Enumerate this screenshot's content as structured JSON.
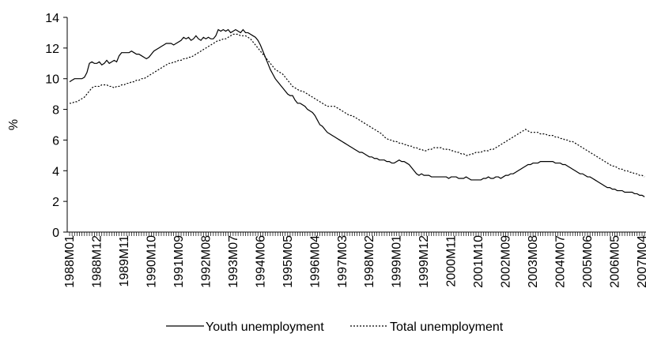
{
  "chart_data": {
    "type": "line",
    "y_label": "%",
    "legend": "bottom",
    "categories": [
      "1988M01",
      null,
      null,
      null,
      null,
      null,
      null,
      null,
      null,
      null,
      null,
      "1988M12",
      null,
      null,
      null,
      null,
      null,
      null,
      null,
      null,
      null,
      null,
      "1989M11",
      null,
      null,
      null,
      null,
      null,
      null,
      null,
      null,
      null,
      null,
      "1990M10",
      null,
      null,
      null,
      null,
      null,
      null,
      null,
      null,
      null,
      null,
      "1991M09",
      null,
      null,
      null,
      null,
      null,
      null,
      null,
      null,
      null,
      null,
      "1992M08",
      null,
      null,
      null,
      null,
      null,
      null,
      null,
      null,
      null,
      null,
      "1993M07",
      null,
      null,
      null,
      null,
      null,
      null,
      null,
      null,
      null,
      null,
      "1994M06",
      null,
      null,
      null,
      null,
      null,
      null,
      null,
      null,
      null,
      null,
      "1995M05",
      null,
      null,
      null,
      null,
      null,
      null,
      null,
      null,
      null,
      null,
      "1996M04",
      null,
      null,
      null,
      null,
      null,
      null,
      null,
      null,
      null,
      null,
      "1997M03",
      null,
      null,
      null,
      null,
      null,
      null,
      null,
      null,
      null,
      null,
      "1998M02",
      null,
      null,
      null,
      null,
      null,
      null,
      null,
      null,
      null,
      null,
      "1999M01",
      null,
      null,
      null,
      null,
      null,
      null,
      null,
      null,
      null,
      null,
      "1999M12",
      null,
      null,
      null,
      null,
      null,
      null,
      null,
      null,
      null,
      null,
      "2000M11",
      null,
      null,
      null,
      null,
      null,
      null,
      null,
      null,
      null,
      null,
      "2001M10",
      null,
      null,
      null,
      null,
      null,
      null,
      null,
      null,
      null,
      null,
      "2002M09",
      null,
      null,
      null,
      null,
      null,
      null,
      null,
      null,
      null,
      null,
      "2003M08",
      null,
      null,
      null,
      null,
      null,
      null,
      null,
      null,
      null,
      null,
      "2004M07",
      null,
      null,
      null,
      null,
      null,
      null,
      null,
      null,
      null,
      null,
      "2005M06",
      null,
      null,
      null,
      null,
      null,
      null,
      null,
      null,
      null,
      null,
      "2006M05",
      null,
      null,
      null,
      null,
      null,
      null,
      null,
      null,
      null,
      null,
      "2007M04",
      null
    ],
    "series": [
      {
        "name": "Youth unemployment",
        "color": "#000000",
        "style": "solid",
        "values": [
          9.8,
          9.9,
          10.0,
          10.0,
          10.0,
          10.0,
          10.1,
          10.4,
          11.0,
          11.1,
          11.0,
          11.0,
          11.1,
          10.9,
          11.0,
          11.2,
          11.0,
          11.1,
          11.2,
          11.1,
          11.5,
          11.7,
          11.7,
          11.7,
          11.7,
          11.8,
          11.7,
          11.6,
          11.6,
          11.5,
          11.4,
          11.3,
          11.4,
          11.6,
          11.8,
          11.9,
          12.0,
          12.1,
          12.2,
          12.3,
          12.3,
          12.3,
          12.2,
          12.3,
          12.4,
          12.5,
          12.7,
          12.6,
          12.7,
          12.5,
          12.6,
          12.8,
          12.6,
          12.5,
          12.7,
          12.6,
          12.7,
          12.6,
          12.6,
          12.8,
          13.2,
          13.1,
          13.2,
          13.1,
          13.2,
          13.0,
          13.1,
          13.2,
          13.1,
          13.0,
          13.2,
          13.0,
          13.0,
          12.9,
          12.8,
          12.7,
          12.5,
          12.2,
          11.8,
          11.4,
          11.0,
          10.6,
          10.3,
          10.0,
          9.8,
          9.6,
          9.4,
          9.2,
          9.0,
          8.9,
          8.9,
          8.6,
          8.4,
          8.4,
          8.3,
          8.2,
          8.0,
          7.9,
          7.8,
          7.6,
          7.3,
          7.0,
          6.9,
          6.7,
          6.5,
          6.4,
          6.3,
          6.2,
          6.1,
          6.0,
          5.9,
          5.8,
          5.7,
          5.6,
          5.5,
          5.4,
          5.3,
          5.2,
          5.2,
          5.1,
          5.0,
          4.9,
          4.9,
          4.8,
          4.8,
          4.7,
          4.7,
          4.7,
          4.6,
          4.6,
          4.5,
          4.5,
          4.6,
          4.7,
          4.6,
          4.6,
          4.5,
          4.4,
          4.2,
          4.0,
          3.8,
          3.7,
          3.8,
          3.7,
          3.7,
          3.7,
          3.6,
          3.6,
          3.6,
          3.6,
          3.6,
          3.6,
          3.6,
          3.5,
          3.6,
          3.6,
          3.6,
          3.5,
          3.5,
          3.5,
          3.6,
          3.5,
          3.4,
          3.4,
          3.4,
          3.4,
          3.4,
          3.5,
          3.5,
          3.6,
          3.5,
          3.5,
          3.6,
          3.6,
          3.5,
          3.6,
          3.7,
          3.7,
          3.8,
          3.8,
          3.9,
          4.0,
          4.1,
          4.2,
          4.3,
          4.4,
          4.4,
          4.5,
          4.5,
          4.5,
          4.6,
          4.6,
          4.6,
          4.6,
          4.6,
          4.6,
          4.5,
          4.5,
          4.5,
          4.4,
          4.4,
          4.3,
          4.2,
          4.1,
          4.0,
          3.9,
          3.8,
          3.8,
          3.7,
          3.6,
          3.6,
          3.5,
          3.4,
          3.3,
          3.2,
          3.1,
          3.0,
          2.9,
          2.9,
          2.8,
          2.8,
          2.7,
          2.7,
          2.7,
          2.6,
          2.6,
          2.6,
          2.6,
          2.5,
          2.5,
          2.4,
          2.4,
          2.3
        ]
      },
      {
        "name": "Total unemployment",
        "color": "#000000",
        "style": "dotted",
        "values": [
          8.4,
          8.4,
          8.5,
          8.5,
          8.6,
          8.7,
          8.8,
          9.0,
          9.2,
          9.4,
          9.5,
          9.5,
          9.5,
          9.6,
          9.6,
          9.6,
          9.5,
          9.5,
          9.4,
          9.5,
          9.5,
          9.6,
          9.6,
          9.7,
          9.7,
          9.8,
          9.8,
          9.9,
          9.9,
          10.0,
          10.0,
          10.1,
          10.2,
          10.3,
          10.4,
          10.5,
          10.6,
          10.7,
          10.8,
          10.9,
          11.0,
          11.0,
          11.1,
          11.1,
          11.2,
          11.2,
          11.3,
          11.3,
          11.4,
          11.4,
          11.5,
          11.6,
          11.7,
          11.8,
          11.9,
          12.0,
          12.1,
          12.2,
          12.3,
          12.4,
          12.5,
          12.5,
          12.6,
          12.6,
          12.7,
          12.8,
          12.9,
          12.9,
          12.9,
          12.8,
          12.8,
          12.8,
          12.7,
          12.6,
          12.4,
          12.2,
          12.0,
          11.8,
          11.6,
          11.4,
          11.2,
          11.0,
          10.8,
          10.6,
          10.5,
          10.4,
          10.3,
          10.1,
          9.9,
          9.7,
          9.5,
          9.4,
          9.3,
          9.2,
          9.2,
          9.1,
          9.0,
          8.9,
          8.8,
          8.7,
          8.6,
          8.5,
          8.4,
          8.3,
          8.2,
          8.2,
          8.2,
          8.2,
          8.1,
          8.0,
          7.9,
          7.8,
          7.7,
          7.6,
          7.6,
          7.5,
          7.4,
          7.3,
          7.2,
          7.1,
          7.0,
          6.9,
          6.8,
          6.7,
          6.6,
          6.5,
          6.4,
          6.2,
          6.1,
          6.0,
          6.0,
          5.9,
          5.9,
          5.8,
          5.8,
          5.7,
          5.7,
          5.6,
          5.6,
          5.5,
          5.5,
          5.4,
          5.4,
          5.3,
          5.3,
          5.4,
          5.4,
          5.5,
          5.5,
          5.5,
          5.5,
          5.4,
          5.4,
          5.4,
          5.3,
          5.3,
          5.2,
          5.2,
          5.1,
          5.1,
          5.0,
          5.0,
          5.1,
          5.1,
          5.2,
          5.2,
          5.2,
          5.3,
          5.3,
          5.3,
          5.4,
          5.4,
          5.5,
          5.6,
          5.7,
          5.8,
          5.9,
          6.0,
          6.1,
          6.2,
          6.3,
          6.4,
          6.5,
          6.6,
          6.7,
          6.6,
          6.5,
          6.5,
          6.5,
          6.5,
          6.4,
          6.4,
          6.4,
          6.3,
          6.3,
          6.3,
          6.2,
          6.2,
          6.1,
          6.1,
          6.0,
          6.0,
          5.9,
          5.9,
          5.8,
          5.7,
          5.6,
          5.5,
          5.4,
          5.3,
          5.2,
          5.1,
          5.0,
          4.9,
          4.8,
          4.7,
          4.6,
          4.5,
          4.4,
          4.3,
          4.3,
          4.2,
          4.1,
          4.1,
          4.0,
          4.0,
          3.9,
          3.9,
          3.8,
          3.8,
          3.7,
          3.7,
          3.6
        ]
      }
    ],
    "ylim": [
      0,
      14
    ],
    "yticks": [
      0,
      2,
      4,
      6,
      8,
      10,
      12,
      14
    ]
  }
}
